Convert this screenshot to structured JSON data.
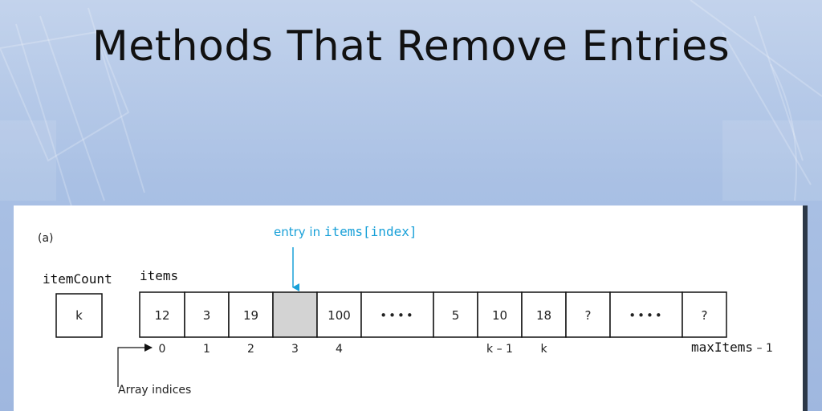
{
  "slide": {
    "title": "Methods That Remove Entries"
  },
  "figure": {
    "label": "(a)",
    "callout_prefix": "entry in ",
    "callout_code": "items[index]",
    "item_count_label": "itemCount",
    "item_count_value": "k",
    "items_label": "items",
    "cells": [
      {
        "value": "12",
        "index": "0",
        "highlight": false
      },
      {
        "value": "3",
        "index": "1",
        "highlight": false
      },
      {
        "value": "19",
        "index": "2",
        "highlight": false
      },
      {
        "value": "",
        "index": "3",
        "highlight": true
      },
      {
        "value": "100",
        "index": "4",
        "highlight": false
      },
      {
        "value": "••••",
        "index": "",
        "highlight": false
      },
      {
        "value": "5",
        "index": "",
        "highlight": false
      },
      {
        "value": "10",
        "index": "k – 1",
        "highlight": false
      },
      {
        "value": "18",
        "index": "k",
        "highlight": false
      },
      {
        "value": "?",
        "index": "",
        "highlight": false
      },
      {
        "value": "••••",
        "index": "",
        "highlight": false
      },
      {
        "value": "?",
        "index": "",
        "highlight": false
      }
    ],
    "last_index_code": "maxItems",
    "last_index_suffix": " – 1",
    "array_indices_label": "Array indices"
  }
}
